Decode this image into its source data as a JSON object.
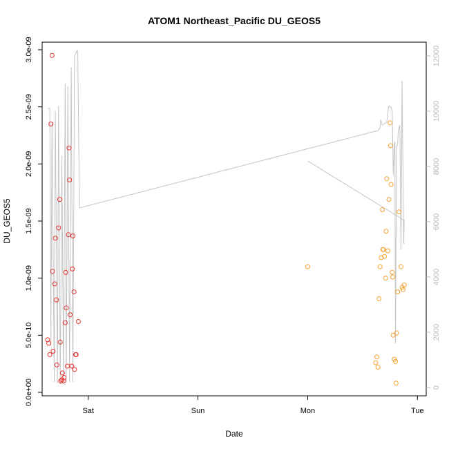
{
  "chart_data": {
    "type": "scatter",
    "title": "ATOM1 Northeast_Pacific DU_GEOS5",
    "xlabel": "Date",
    "ylabel": "DU_GEOS5",
    "x_ticks": [
      {
        "day": 1.0,
        "label": "Sat"
      },
      {
        "day": 2.0,
        "label": "Sun"
      },
      {
        "day": 3.0,
        "label": "Mon"
      },
      {
        "day": 4.0,
        "label": "Tue"
      }
    ],
    "xlim": [
      0.58,
      4.08
    ],
    "ylim": [
      0,
      3e-09
    ],
    "y_ticks": [
      {
        "value": 0.0,
        "label": "0.0e+00"
      },
      {
        "value": 5e-10,
        "label": "5.0e-10"
      },
      {
        "value": 1e-09,
        "label": "1.0e-09"
      },
      {
        "value": 1.5e-09,
        "label": "1.5e-09"
      },
      {
        "value": 2e-09,
        "label": "2.0e-09"
      },
      {
        "value": 2.5e-09,
        "label": "2.5e-09"
      },
      {
        "value": 3e-09,
        "label": "3.0e-09"
      }
    ],
    "y2lim": [
      -300,
      12500
    ],
    "y2_ticks": [
      {
        "value": 0,
        "label": "0"
      },
      {
        "value": 2000,
        "label": "2000"
      },
      {
        "value": 4000,
        "label": "4000"
      },
      {
        "value": 6000,
        "label": "6000"
      },
      {
        "value": 8000,
        "label": "8000"
      },
      {
        "value": 10000,
        "label": "10000"
      },
      {
        "value": 12000,
        "label": "12000"
      }
    ],
    "colors": {
      "series_red": "#e8302e",
      "series_orange": "#f5a030",
      "altitude_line": "#c4c4c4",
      "axis": "#000000",
      "axis_right": "#b8b8b8"
    },
    "series": [
      {
        "color_key": "series_red",
        "points": [
          [
            0.63,
            4.6e-10
          ],
          [
            0.64,
            4.3e-10
          ],
          [
            0.65,
            3.3e-10
          ],
          [
            0.66,
            2.35e-09
          ],
          [
            0.67,
            2.95e-09
          ],
          [
            0.675,
            1.06e-09
          ],
          [
            0.68,
            3.6e-10
          ],
          [
            0.695,
            9.5e-10
          ],
          [
            0.7,
            1.35e-09
          ],
          [
            0.71,
            8.1e-10
          ],
          [
            0.715,
            2.4e-10
          ],
          [
            0.73,
            1.44e-09
          ],
          [
            0.74,
            1.69e-09
          ],
          [
            0.745,
            4.4e-10
          ],
          [
            0.75,
            1e-10
          ],
          [
            0.76,
            1.1e-10
          ],
          [
            0.765,
            1.7e-10
          ],
          [
            0.775,
            1e-10
          ],
          [
            0.78,
            1.3e-10
          ],
          [
            0.79,
            6.1e-10
          ],
          [
            0.795,
            1.05e-09
          ],
          [
            0.8,
            7.4e-10
          ],
          [
            0.81,
            2.3e-10
          ],
          [
            0.82,
            1.38e-09
          ],
          [
            0.825,
            2.14e-09
          ],
          [
            0.83,
            1.86e-09
          ],
          [
            0.835,
            6.8e-10
          ],
          [
            0.85,
            2.3e-10
          ],
          [
            0.855,
            1.08e-09
          ],
          [
            0.86,
            1.37e-09
          ],
          [
            0.87,
            8.8e-10
          ],
          [
            0.875,
            2e-10
          ],
          [
            0.885,
            3.3e-10
          ],
          [
            0.89,
            3.3e-10
          ],
          [
            0.91,
            6.2e-10
          ]
        ]
      },
      {
        "color_key": "series_orange",
        "points": [
          [
            3.0,
            1.1e-09
          ],
          [
            3.62,
            2.6e-10
          ],
          [
            3.63,
            3.1e-10
          ],
          [
            3.64,
            2.2e-10
          ],
          [
            3.65,
            8.2e-10
          ],
          [
            3.66,
            1.1e-09
          ],
          [
            3.67,
            1.18e-09
          ],
          [
            3.68,
            1.6e-09
          ],
          [
            3.685,
            1.25e-09
          ],
          [
            3.69,
            1.25e-09
          ],
          [
            3.7,
            1.19e-09
          ],
          [
            3.71,
            1e-09
          ],
          [
            3.715,
            1.41e-09
          ],
          [
            3.72,
            1.87e-09
          ],
          [
            3.73,
            1.24e-09
          ],
          [
            3.74,
            1.69e-09
          ],
          [
            3.75,
            2.36e-09
          ],
          [
            3.755,
            2.16e-09
          ],
          [
            3.76,
            1.82e-09
          ],
          [
            3.77,
            1.05e-09
          ],
          [
            3.775,
            1.01e-09
          ],
          [
            3.78,
            5e-10
          ],
          [
            3.79,
            2.9e-10
          ],
          [
            3.8,
            2.7e-10
          ],
          [
            3.805,
            8e-11
          ],
          [
            3.81,
            5.2e-10
          ],
          [
            3.82,
            8.8e-10
          ],
          [
            3.83,
            1.58e-09
          ],
          [
            3.85,
            1.1e-09
          ],
          [
            3.86,
            9.2e-10
          ],
          [
            3.87,
            9e-10
          ],
          [
            3.88,
            9.4e-10
          ]
        ]
      }
    ],
    "altitude_line": {
      "color_key": "altitude_line",
      "points": [
        [
          0.63,
          10100
        ],
        [
          0.65,
          10100
        ],
        [
          0.66,
          1500
        ],
        [
          0.67,
          9600
        ],
        [
          0.69,
          200
        ],
        [
          0.7,
          10000
        ],
        [
          0.72,
          150
        ],
        [
          0.73,
          10200
        ],
        [
          0.745,
          120
        ],
        [
          0.76,
          8400
        ],
        [
          0.775,
          100
        ],
        [
          0.79,
          11000
        ],
        [
          0.8,
          180
        ],
        [
          0.815,
          10900
        ],
        [
          0.83,
          200
        ],
        [
          0.845,
          11600
        ],
        [
          0.86,
          200
        ],
        [
          0.875,
          12000
        ],
        [
          0.9,
          12200
        ],
        [
          0.905,
          12100
        ],
        [
          0.92,
          6500
        ],
        [
          3.64,
          9300
        ],
        [
          3.66,
          9400
        ],
        [
          3.665,
          9700
        ],
        [
          3.68,
          9500
        ],
        [
          3.72,
          9600
        ],
        [
          3.735,
          10100
        ],
        [
          3.74,
          10200
        ],
        [
          3.75,
          10150
        ],
        [
          3.76,
          10150
        ],
        [
          3.77,
          10000
        ],
        [
          3.78,
          7700
        ],
        [
          3.79,
          8800
        ],
        [
          3.795,
          8900
        ],
        [
          3.8,
          1600
        ],
        [
          3.81,
          8700
        ],
        [
          3.82,
          8800
        ],
        [
          3.825,
          9300
        ],
        [
          3.84,
          9500
        ],
        [
          3.85,
          5000
        ],
        [
          3.86,
          11100
        ],
        [
          3.875,
          5200
        ],
        [
          3.88,
          6050
        ],
        [
          3.0,
          8200
        ]
      ]
    }
  }
}
